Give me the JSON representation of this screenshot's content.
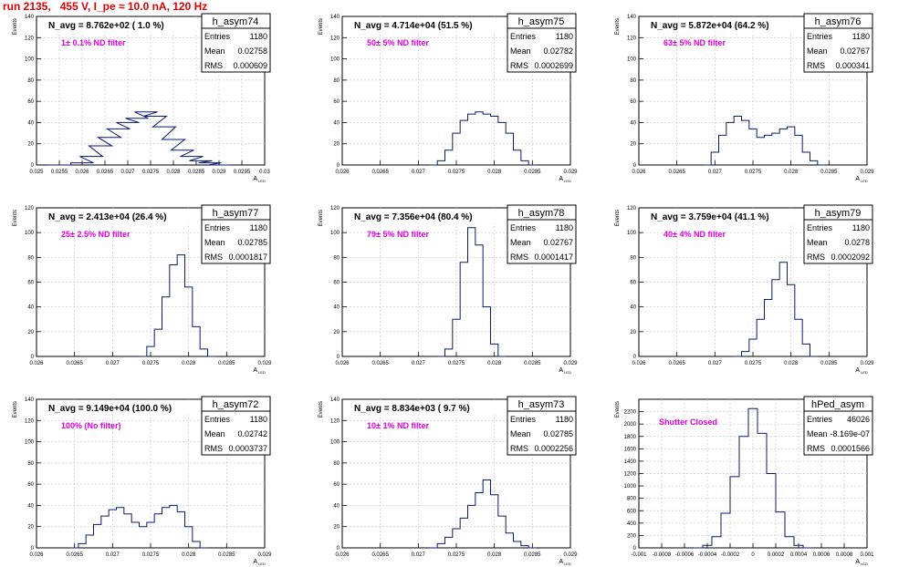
{
  "page": {
    "title": "run 2135,   455 V, I_pe ≈ 10.0 nA, 120 Hz"
  },
  "colors": {
    "histogram": "#0b1a6e",
    "annotation": "#e000e0",
    "title": "#e00000",
    "grid": "#c8c8c8"
  },
  "chart_data": [
    {
      "type": "histogram",
      "name": "h_asym74",
      "stats": {
        "entries": "1180",
        "mean": "0.02758",
        "rms": "0.000609"
      },
      "title": "N_avg = 8.762e+02 ( 1.0 %)",
      "annotation": "1± 0.1% ND filter",
      "ylabel": "Events",
      "xlabel": "A",
      "xlim": [
        0.025,
        0.03
      ],
      "ylim": [
        0,
        140
      ],
      "xticks": [
        "0.025",
        "0.0255",
        "0.026",
        "0.0265",
        "0.027",
        "0.0275",
        "0.028",
        "0.0285",
        "0.029",
        "0.0295",
        "0.03"
      ],
      "yticks": [
        "0",
        "20",
        "40",
        "60",
        "80",
        "100",
        "120",
        "140"
      ],
      "x": [
        0.0255,
        0.026,
        0.0262,
        0.0264,
        0.0266,
        0.0268,
        0.027,
        0.0272,
        0.0274,
        0.0276,
        0.0278,
        0.028,
        0.0282,
        0.0284,
        0.0286,
        0.0288,
        0.029
      ],
      "values": [
        0,
        2,
        8,
        18,
        26,
        34,
        40,
        44,
        50,
        46,
        36,
        24,
        14,
        8,
        4,
        2,
        0
      ]
    },
    {
      "type": "histogram",
      "name": "h_asym75",
      "stats": {
        "entries": "1180",
        "mean": "0.02782",
        "rms": "0.0002699"
      },
      "title": "N_avg = 4.714e+04 (51.5 %)",
      "annotation": "50± 5% ND filter",
      "ylabel": "Events",
      "xlabel": "A",
      "xlim": [
        0.026,
        0.029
      ],
      "ylim": [
        0,
        140
      ],
      "xticks": [
        "0.026",
        "0.0265",
        "0.027",
        "0.0275",
        "0.028",
        "0.0285",
        "0.029"
      ],
      "yticks": [
        "0",
        "20",
        "40",
        "60",
        "80",
        "100",
        "120",
        "140"
      ],
      "x": [
        0.0272,
        0.0273,
        0.0274,
        0.0275,
        0.0276,
        0.0277,
        0.0278,
        0.0279,
        0.028,
        0.0281,
        0.0282,
        0.0283,
        0.0284,
        0.0285
      ],
      "values": [
        0,
        4,
        14,
        30,
        42,
        48,
        50,
        48,
        46,
        40,
        30,
        14,
        4,
        0
      ]
    },
    {
      "type": "histogram",
      "name": "h_asym76",
      "stats": {
        "entries": "1180",
        "mean": "0.02767",
        "rms": "0.000341"
      },
      "title": "N_avg = 5.872e+04 (64.2 %)",
      "annotation": "63± 5% ND filter",
      "ylabel": "Events",
      "xlabel": "A",
      "xlim": [
        0.026,
        0.029
      ],
      "ylim": [
        0,
        140
      ],
      "xticks": [
        "0.026",
        "0.0265",
        "0.027",
        "0.0275",
        "0.028",
        "0.0285",
        "0.029"
      ],
      "yticks": [
        "0",
        "20",
        "40",
        "60",
        "80",
        "100",
        "120",
        "140"
      ],
      "x": [
        0.0269,
        0.027,
        0.0271,
        0.0272,
        0.0273,
        0.0274,
        0.0275,
        0.0276,
        0.0277,
        0.0278,
        0.0279,
        0.028,
        0.0281,
        0.0282,
        0.0283,
        0.0284
      ],
      "values": [
        0,
        12,
        28,
        40,
        46,
        42,
        34,
        26,
        28,
        30,
        34,
        36,
        28,
        12,
        4,
        0
      ]
    },
    {
      "type": "histogram",
      "name": "h_asym77",
      "stats": {
        "entries": "1180",
        "mean": "0.02785",
        "rms": "0.0001817"
      },
      "title": "N_avg = 2.413e+04 (26.4 %)",
      "annotation": "25± 2.5% ND filter",
      "ylabel": "Events",
      "xlabel": "A",
      "xlim": [
        0.026,
        0.029
      ],
      "ylim": [
        0,
        120
      ],
      "xticks": [
        "0.026",
        "0.0265",
        "0.027",
        "0.0275",
        "0.028",
        "0.0285",
        "0.029"
      ],
      "yticks": [
        "0",
        "20",
        "40",
        "60",
        "80",
        "100",
        "120"
      ],
      "x": [
        0.0274,
        0.0275,
        0.0276,
        0.0277,
        0.0278,
        0.0279,
        0.028,
        0.0281,
        0.0282,
        0.0283
      ],
      "values": [
        0,
        8,
        22,
        48,
        74,
        82,
        56,
        24,
        6,
        0
      ]
    },
    {
      "type": "histogram",
      "name": "h_asym78",
      "stats": {
        "entries": "1180",
        "mean": "0.02767",
        "rms": "0.0001417"
      },
      "title": "N_avg = 7.356e+04 (80.4 %)",
      "annotation": "79± 5% ND filter",
      "ylabel": "Events",
      "xlabel": "A",
      "xlim": [
        0.026,
        0.029
      ],
      "ylim": [
        0,
        120
      ],
      "xticks": [
        "0.026",
        "0.0265",
        "0.027",
        "0.0275",
        "0.028",
        "0.0285",
        "0.029"
      ],
      "yticks": [
        "0",
        "20",
        "40",
        "60",
        "80",
        "100",
        "120"
      ],
      "x": [
        0.0273,
        0.0274,
        0.0275,
        0.0276,
        0.0277,
        0.0278,
        0.0279,
        0.028,
        0.0281
      ],
      "values": [
        0,
        6,
        30,
        76,
        104,
        90,
        40,
        10,
        0
      ]
    },
    {
      "type": "histogram",
      "name": "h_asym79",
      "stats": {
        "entries": "1180",
        "mean": "0.0278",
        "rms": "0.0002092"
      },
      "title": "N_avg = 3.759e+04 (41.1 %)",
      "annotation": "40± 4% ND filter",
      "ylabel": "Events",
      "xlabel": "A",
      "xlim": [
        0.026,
        0.029
      ],
      "ylim": [
        0,
        120
      ],
      "xticks": [
        "0.026",
        "0.0265",
        "0.027",
        "0.0275",
        "0.028",
        "0.0285",
        "0.029"
      ],
      "yticks": [
        "0",
        "20",
        "40",
        "60",
        "80",
        "100",
        "120"
      ],
      "x": [
        0.0273,
        0.0274,
        0.0275,
        0.0276,
        0.0277,
        0.0278,
        0.0279,
        0.028,
        0.0281,
        0.0282,
        0.0283
      ],
      "values": [
        0,
        4,
        14,
        30,
        46,
        62,
        76,
        58,
        30,
        10,
        0
      ]
    },
    {
      "type": "histogram",
      "name": "h_asym72",
      "stats": {
        "entries": "1180",
        "mean": "0.02742",
        "rms": "0.0003737"
      },
      "title": "N_avg = 9.149e+04 (100.0 %)",
      "annotation": "100% (No filter)",
      "ylabel": "Events",
      "xlabel": "A",
      "xlim": [
        0.026,
        0.029
      ],
      "ylim": [
        0,
        140
      ],
      "xticks": [
        "0.026",
        "0.0265",
        "0.027",
        "0.0275",
        "0.028",
        "0.0285",
        "0.029"
      ],
      "yticks": [
        "0",
        "20",
        "40",
        "60",
        "80",
        "100",
        "120",
        "140"
      ],
      "x": [
        0.0265,
        0.0266,
        0.0267,
        0.0268,
        0.0269,
        0.027,
        0.0271,
        0.0272,
        0.0273,
        0.0274,
        0.0275,
        0.0276,
        0.0277,
        0.0278,
        0.0279,
        0.028,
        0.0281,
        0.0282
      ],
      "values": [
        0,
        4,
        12,
        22,
        30,
        36,
        38,
        32,
        24,
        20,
        24,
        32,
        38,
        40,
        34,
        20,
        6,
        0
      ]
    },
    {
      "type": "histogram",
      "name": "h_asym73",
      "stats": {
        "entries": "1180",
        "mean": "0.02785",
        "rms": "0.0002256"
      },
      "title": "N_avg = 8.834e+03 ( 9.7 %)",
      "annotation": "10± 1% ND filter",
      "ylabel": "Events",
      "xlabel": "A",
      "xlim": [
        0.026,
        0.029
      ],
      "ylim": [
        0,
        140
      ],
      "xticks": [
        "0.026",
        "0.0265",
        "0.027",
        "0.0275",
        "0.028",
        "0.0285",
        "0.029"
      ],
      "yticks": [
        "0",
        "20",
        "40",
        "60",
        "80",
        "100",
        "120",
        "140"
      ],
      "x": [
        0.0272,
        0.0273,
        0.0274,
        0.0275,
        0.0276,
        0.0277,
        0.0278,
        0.0279,
        0.028,
        0.0281,
        0.0282,
        0.0283,
        0.0284,
        0.0285
      ],
      "values": [
        0,
        4,
        10,
        18,
        28,
        40,
        52,
        64,
        50,
        30,
        14,
        6,
        2,
        0
      ]
    },
    {
      "type": "histogram",
      "name": "hPed_asym",
      "stats": {
        "entries": "46026",
        "mean": "-8.169e-07",
        "rms": "0.0001566"
      },
      "title": "",
      "annotation": "Shutter Closed",
      "ylabel": "Events",
      "xlabel": "A",
      "xlim": [
        -0.001,
        0.001
      ],
      "ylim": [
        0,
        2400
      ],
      "xticks": [
        "-0.001",
        "-0.0008",
        "-0.0006",
        "-0.0004",
        "-0.0002",
        "0",
        "0.0002",
        "0.0004",
        "0.0006",
        "0.0008",
        "0.001"
      ],
      "yticks": [
        "0",
        "200",
        "400",
        "600",
        "800",
        "1000",
        "1200",
        "1400",
        "1600",
        "1800",
        "2000",
        "2200"
      ],
      "x": [
        -0.00048,
        -0.0004,
        -0.00032,
        -0.00024,
        -0.00016,
        -8e-05,
        0,
        8e-05,
        0.00016,
        0.00024,
        0.00032,
        0.0004,
        0.00048
      ],
      "values": [
        0,
        40,
        180,
        560,
        1150,
        1800,
        2250,
        1850,
        1200,
        580,
        180,
        40,
        0
      ]
    }
  ]
}
